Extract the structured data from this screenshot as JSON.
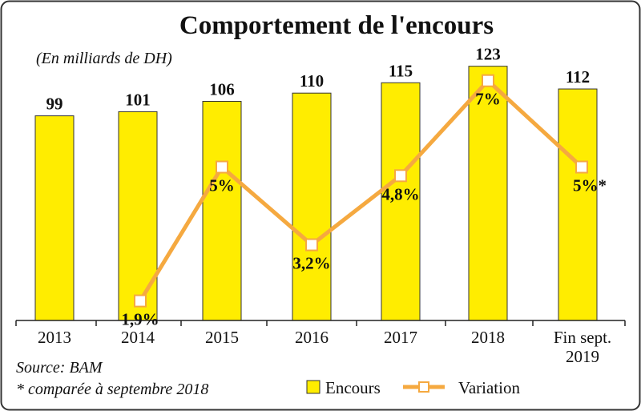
{
  "chart_data": {
    "type": "bar",
    "title": "Comportement de l'encours",
    "subtitle": "(En milliards de DH)",
    "categories": [
      "2013",
      "2014",
      "2015",
      "2016",
      "2017",
      "2018",
      "Fin sept. 2019"
    ],
    "category_lines": [
      [
        "2013"
      ],
      [
        "2014"
      ],
      [
        "2015"
      ],
      [
        "2016"
      ],
      [
        "2017"
      ],
      [
        "2018"
      ],
      [
        "Fin sept.",
        "2019"
      ]
    ],
    "series": [
      {
        "name": "Encours",
        "type": "bar",
        "values": [
          99,
          101,
          106,
          110,
          115,
          123,
          112
        ],
        "labels": [
          "99",
          "101",
          "106",
          "110",
          "115",
          "123",
          "112"
        ],
        "color": "#FFED00"
      },
      {
        "name": "Variation",
        "type": "line",
        "values": [
          null,
          1.9,
          5,
          3.2,
          4.8,
          7,
          5
        ],
        "labels": [
          "",
          "1,9%",
          "5%",
          "3,2%",
          "4,8%",
          "7%",
          "5%*"
        ],
        "color": "#F5A940"
      }
    ],
    "ylim": [
      0,
      130
    ],
    "grid": false,
    "legend_position": "bottom-right",
    "source": "Source: BAM",
    "footnote": "* comparée à septembre 2018"
  }
}
